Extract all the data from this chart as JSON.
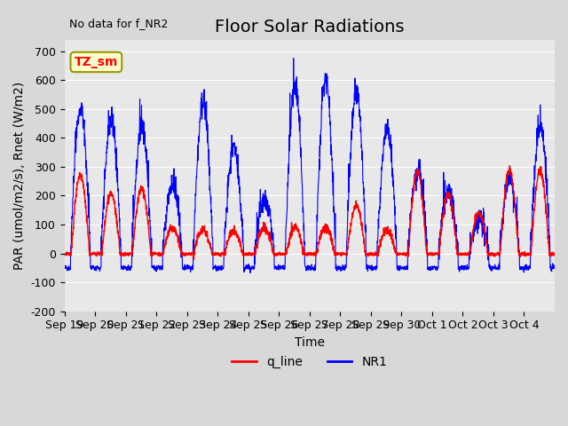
{
  "title": "Floor Solar Radiations",
  "xlabel": "Time",
  "ylabel": "PAR (umol/m2/s), Rnet (W/m2)",
  "annotation": "No data for f_NR2",
  "box_label": "TZ_sm",
  "ylim": [
    -200,
    740
  ],
  "yticks": [
    -200,
    -100,
    0,
    100,
    200,
    300,
    400,
    500,
    600,
    700
  ],
  "xtick_labels": [
    "Sep 19",
    "Sep 20",
    "Sep 21",
    "Sep 22",
    "Sep 23",
    "Sep 24",
    "Sep 25",
    "Sep 26",
    "Sep 27",
    "Sep 28",
    "Sep 29",
    "Sep 30",
    "Oct 1",
    "Oct 2",
    "Oct 3",
    "Oct 4"
  ],
  "legend_labels": [
    "q_line",
    "NR1"
  ],
  "legend_colors": [
    "red",
    "blue"
  ],
  "title_fontsize": 14,
  "label_fontsize": 10,
  "tick_fontsize": 9
}
